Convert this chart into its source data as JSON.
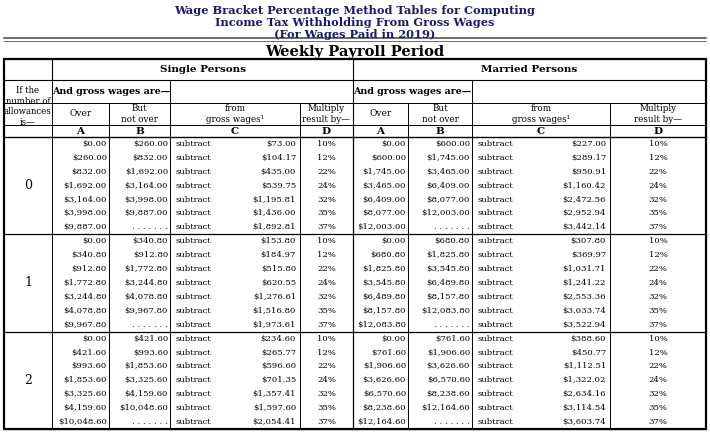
{
  "title_line1": "Wage Bracket Percentage Method Tables for Computing",
  "title_line2": "Income Tax Withholding From Gross Wages",
  "title_line3": "(For Wages Paid in 2019)",
  "subtitle": "Weekly Payroll Period",
  "header_single": "Single Persons",
  "header_married": "Married Persons",
  "header_wages": "And gross wages are—",
  "col_over": "Over",
  "col_not_over": "But\nnot over",
  "col_from": "from\ngross wages¹",
  "col_multiply": "Multiply\nresult by—",
  "col_labels": [
    "A",
    "B",
    "C",
    "D"
  ],
  "left_label": "If the\nnumber of\nallowances\nis—",
  "allowances": [
    "0",
    "1",
    "2"
  ],
  "single_data": [
    [
      [
        "$0.00",
        "$260.00",
        "subtract",
        "$73.00",
        "10%"
      ],
      [
        "$260.00",
        "$832.00",
        "subtract",
        "$104.17",
        "12%"
      ],
      [
        "$832.00",
        "$1,692.00",
        "subtract",
        "$435.00",
        "22%"
      ],
      [
        "$1,692.00",
        "$3,164.00",
        "subtract",
        "$539.75",
        "24%"
      ],
      [
        "$3,164.00",
        "$3,998.00",
        "subtract",
        "$1,195.81",
        "32%"
      ],
      [
        "$3,998.00",
        "$9,887.00",
        "subtract",
        "$1,436.00",
        "35%"
      ],
      [
        "$9,887.00",
        ". . . . . . .",
        "subtract",
        "$1,892.81",
        "37%"
      ]
    ],
    [
      [
        "$0.00",
        "$340.80",
        "subtract",
        "$153.80",
        "10%"
      ],
      [
        "$340.80",
        "$912.80",
        "subtract",
        "$184.97",
        "12%"
      ],
      [
        "$912.80",
        "$1,772.80",
        "subtract",
        "$515.80",
        "22%"
      ],
      [
        "$1,772.80",
        "$3,244.80",
        "subtract",
        "$620.55",
        "24%"
      ],
      [
        "$3,244.80",
        "$4,078.80",
        "subtract",
        "$1,276.61",
        "32%"
      ],
      [
        "$4,078.80",
        "$9,967.80",
        "subtract",
        "$1,516.80",
        "35%"
      ],
      [
        "$9,967.80",
        ". . . . . . .",
        "subtract",
        "$1,973.61",
        "37%"
      ]
    ],
    [
      [
        "$0.00",
        "$421.60",
        "subtract",
        "$234.60",
        "10%"
      ],
      [
        "$421.60",
        "$993.60",
        "subtract",
        "$265.77",
        "12%"
      ],
      [
        "$993.60",
        "$1,853.60",
        "subtract",
        "$596.60",
        "22%"
      ],
      [
        "$1,853.60",
        "$3,325.60",
        "subtract",
        "$701.35",
        "24%"
      ],
      [
        "$3,325.60",
        "$4,159.60",
        "subtract",
        "$1,357.41",
        "32%"
      ],
      [
        "$4,159.60",
        "$10,048.60",
        "subtract",
        "$1,597.60",
        "35%"
      ],
      [
        "$10,048.60",
        ". . . . . . .",
        "subtract",
        "$2,054.41",
        "37%"
      ]
    ]
  ],
  "married_data": [
    [
      [
        "$0.00",
        "$600.00",
        "subtract",
        "$227.00",
        "10%"
      ],
      [
        "$600.00",
        "$1,745.00",
        "subtract",
        "$289.17",
        "12%"
      ],
      [
        "$1,745.00",
        "$3,465.00",
        "subtract",
        "$950.91",
        "22%"
      ],
      [
        "$3,465.00",
        "$6,409.00",
        "subtract",
        "$1,160.42",
        "24%"
      ],
      [
        "$6,409.00",
        "$8,077.00",
        "subtract",
        "$2,472.56",
        "32%"
      ],
      [
        "$8,077.00",
        "$12,003.00",
        "subtract",
        "$2,952.94",
        "35%"
      ],
      [
        "$12,003.00",
        ". . . . . . .",
        "subtract",
        "$3,442.14",
        "37%"
      ]
    ],
    [
      [
        "$0.00",
        "$680.80",
        "subtract",
        "$307.80",
        "10%"
      ],
      [
        "$680.80",
        "$1,825.80",
        "subtract",
        "$369.97",
        "12%"
      ],
      [
        "$1,825.80",
        "$3,545.80",
        "subtract",
        "$1,031.71",
        "22%"
      ],
      [
        "$3,545.80",
        "$6,489.80",
        "subtract",
        "$1,241.22",
        "24%"
      ],
      [
        "$6,489.80",
        "$8,157.80",
        "subtract",
        "$2,553.36",
        "32%"
      ],
      [
        "$8,157.80",
        "$12,083.80",
        "subtract",
        "$3,033.74",
        "35%"
      ],
      [
        "$12,083.80",
        ". . . . . . .",
        "subtract",
        "$3,522.94",
        "37%"
      ]
    ],
    [
      [
        "$0.00",
        "$761.60",
        "subtract",
        "$388.60",
        "10%"
      ],
      [
        "$761.60",
        "$1,906.60",
        "subtract",
        "$450.77",
        "12%"
      ],
      [
        "$1,906.60",
        "$3,626.60",
        "subtract",
        "$1,112.51",
        "22%"
      ],
      [
        "$3,626.60",
        "$6,570.60",
        "subtract",
        "$1,322.02",
        "24%"
      ],
      [
        "$6,570.60",
        "$8,238.60",
        "subtract",
        "$2,634.16",
        "32%"
      ],
      [
        "$8,238.60",
        "$12,164.60",
        "subtract",
        "$3,114.54",
        "35%"
      ],
      [
        "$12,164.60",
        ". . . . . . .",
        "subtract",
        "$3,603.74",
        "37%"
      ]
    ]
  ]
}
